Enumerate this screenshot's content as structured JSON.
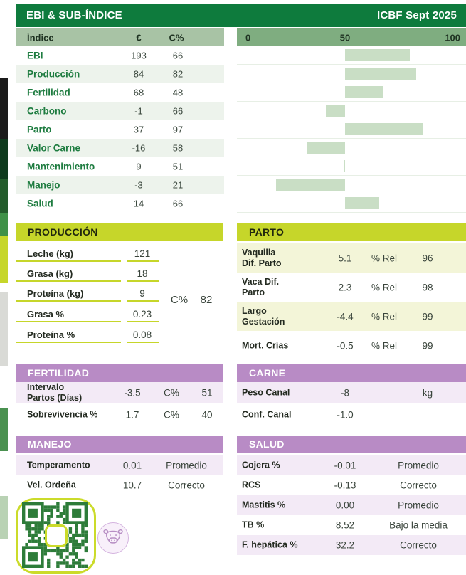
{
  "header": {
    "title": "EBI & SUB-ÍNDICE",
    "edition": "ICBF Sept 2025"
  },
  "index_table": {
    "columns": {
      "label": "Índice",
      "euro": "€",
      "c": "C%"
    },
    "axis": {
      "t0": "0",
      "t50": "50",
      "t100": "100"
    },
    "rows": [
      {
        "label": "EBI",
        "euro": "193",
        "c": "66"
      },
      {
        "label": "Producción",
        "euro": "84",
        "c": "82"
      },
      {
        "label": "Fertilidad",
        "euro": "68",
        "c": "48"
      },
      {
        "label": "Carbono",
        "euro": "-1",
        "c": "66"
      },
      {
        "label": "Parto",
        "euro": "37",
        "c": "97"
      },
      {
        "label": "Valor Carne",
        "euro": "-16",
        "c": "58"
      },
      {
        "label": "Mantenimiento",
        "euro": "9",
        "c": "51"
      },
      {
        "label": "Manejo",
        "euro": "-3",
        "c": "21"
      },
      {
        "label": "Salud",
        "euro": "14",
        "c": "66"
      }
    ]
  },
  "chart_data": {
    "type": "bar",
    "orientation": "horizontal",
    "title": "EBI & SUB-ÍNDICE percentile bars",
    "xlabel": "",
    "ylabel": "",
    "axis_ticks": [
      0,
      50,
      100
    ],
    "xlim": [
      0,
      100
    ],
    "anchor": 50,
    "categories": [
      "EBI",
      "Producción",
      "Fertilidad",
      "Carbono",
      "Parto",
      "Valor Carne",
      "Mantenimiento",
      "Manejo",
      "Salud"
    ],
    "bars": [
      {
        "start": 50,
        "end": 80
      },
      {
        "start": 50,
        "end": 83
      },
      {
        "start": 50,
        "end": 68
      },
      {
        "start": 41,
        "end": 50
      },
      {
        "start": 50,
        "end": 86
      },
      {
        "start": 32,
        "end": 50
      },
      {
        "start": 49.5,
        "end": 50
      },
      {
        "start": 18,
        "end": 50
      },
      {
        "start": 50,
        "end": 66
      }
    ],
    "bar_color": "#c9dec5",
    "grid": false,
    "legend": "none"
  },
  "produccion": {
    "title": "PRODUCCIÓN",
    "rows": [
      {
        "label": "Leche (kg)",
        "value": "121"
      },
      {
        "label": "Grasa (kg)",
        "value": "18"
      },
      {
        "label": "Proteína (kg)",
        "value": "9"
      },
      {
        "label": "Grasa %",
        "value": "0.23"
      },
      {
        "label": "Proteína %",
        "value": "0.08"
      }
    ],
    "c_label": "C%",
    "c_value": "82"
  },
  "parto": {
    "title": "PARTO",
    "rows": [
      {
        "label": "Vaquilla\nDif. Parto",
        "value": "5.1",
        "rel_label": "% Rel",
        "rel": "96"
      },
      {
        "label": "Vaca Dif.\nParto",
        "value": "2.3",
        "rel_label": "% Rel",
        "rel": "98"
      },
      {
        "label": "Largo\nGestación",
        "value": "-4.4",
        "rel_label": "% Rel",
        "rel": "99"
      },
      {
        "label": "Mort. Crías",
        "value": "-0.5",
        "rel_label": "% Rel",
        "rel": "99"
      }
    ]
  },
  "fertilidad": {
    "title": "FERTILIDAD",
    "rows": [
      {
        "label": "Intervalo\nPartos (Días)",
        "value": "-3.5",
        "c_label": "C%",
        "c": "51"
      },
      {
        "label": "Sobrevivencia %",
        "value": "1.7",
        "c_label": "C%",
        "c": "40"
      }
    ]
  },
  "carne": {
    "title": "CARNE",
    "rows": [
      {
        "label": "Peso Canal",
        "value": "-8",
        "unit": "kg"
      },
      {
        "label": "Conf. Canal",
        "value": "-1.0",
        "unit": ""
      }
    ]
  },
  "manejo": {
    "title": "MANEJO",
    "rows": [
      {
        "label": "Temperamento",
        "value": "0.01",
        "status": "Promedio"
      },
      {
        "label": "Vel. Ordeña",
        "value": "10.7",
        "status": "Correcto"
      }
    ]
  },
  "salud": {
    "title": "SALUD",
    "rows": [
      {
        "label": "Cojera %",
        "value": "-0.01",
        "status": "Promedio"
      },
      {
        "label": "RCS",
        "value": "-0.13",
        "status": "Correcto"
      },
      {
        "label": "Mastitis %",
        "value": "0.00",
        "status": "Promedio"
      },
      {
        "label": "TB %",
        "value": "8.52",
        "status": "Bajo la media"
      },
      {
        "label": "F. hepática %",
        "value": "32.2",
        "status": "Correcto"
      }
    ]
  },
  "icons": {
    "qr": "qr-code",
    "cow": "cow-head-icon"
  },
  "colors": {
    "header_green": "#0e7b3d",
    "subheader_left": "#a8c3a5",
    "subheader_right": "#7fad80",
    "index_label_green": "#1e7c40",
    "row_stripe": "#edf3ec",
    "bar_fill": "#c9dec5",
    "lime": "#c6d62a",
    "pale_yellow_row": "#f3f5d8",
    "purple": "#b88bc5",
    "pale_purple_row": "#f3eaf6",
    "qr_green": "#2d7c39"
  }
}
